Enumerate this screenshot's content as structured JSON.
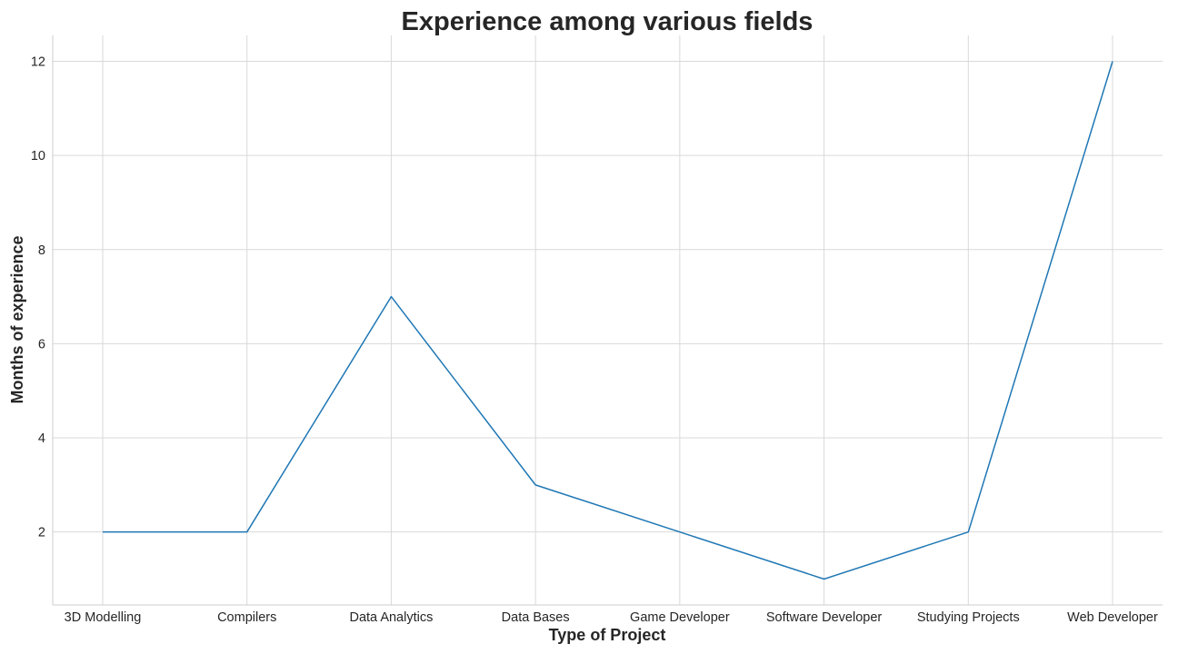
{
  "chart_data": {
    "type": "line",
    "title": "Experience among various fields",
    "xlabel": "Type of Project",
    "ylabel": "Months of experience",
    "categories": [
      "3D Modelling",
      "Compilers",
      "Data Analytics",
      "Data Bases",
      "Game Developer",
      "Software Developer",
      "Studying Projects",
      "Web Developer"
    ],
    "values": [
      2,
      2,
      7,
      3,
      2,
      1,
      2,
      12
    ],
    "ylim": [
      0.45,
      12.55
    ],
    "yticks": [
      2,
      4,
      6,
      8,
      10,
      12
    ],
    "grid": true,
    "line_color": "#1f77b4"
  }
}
